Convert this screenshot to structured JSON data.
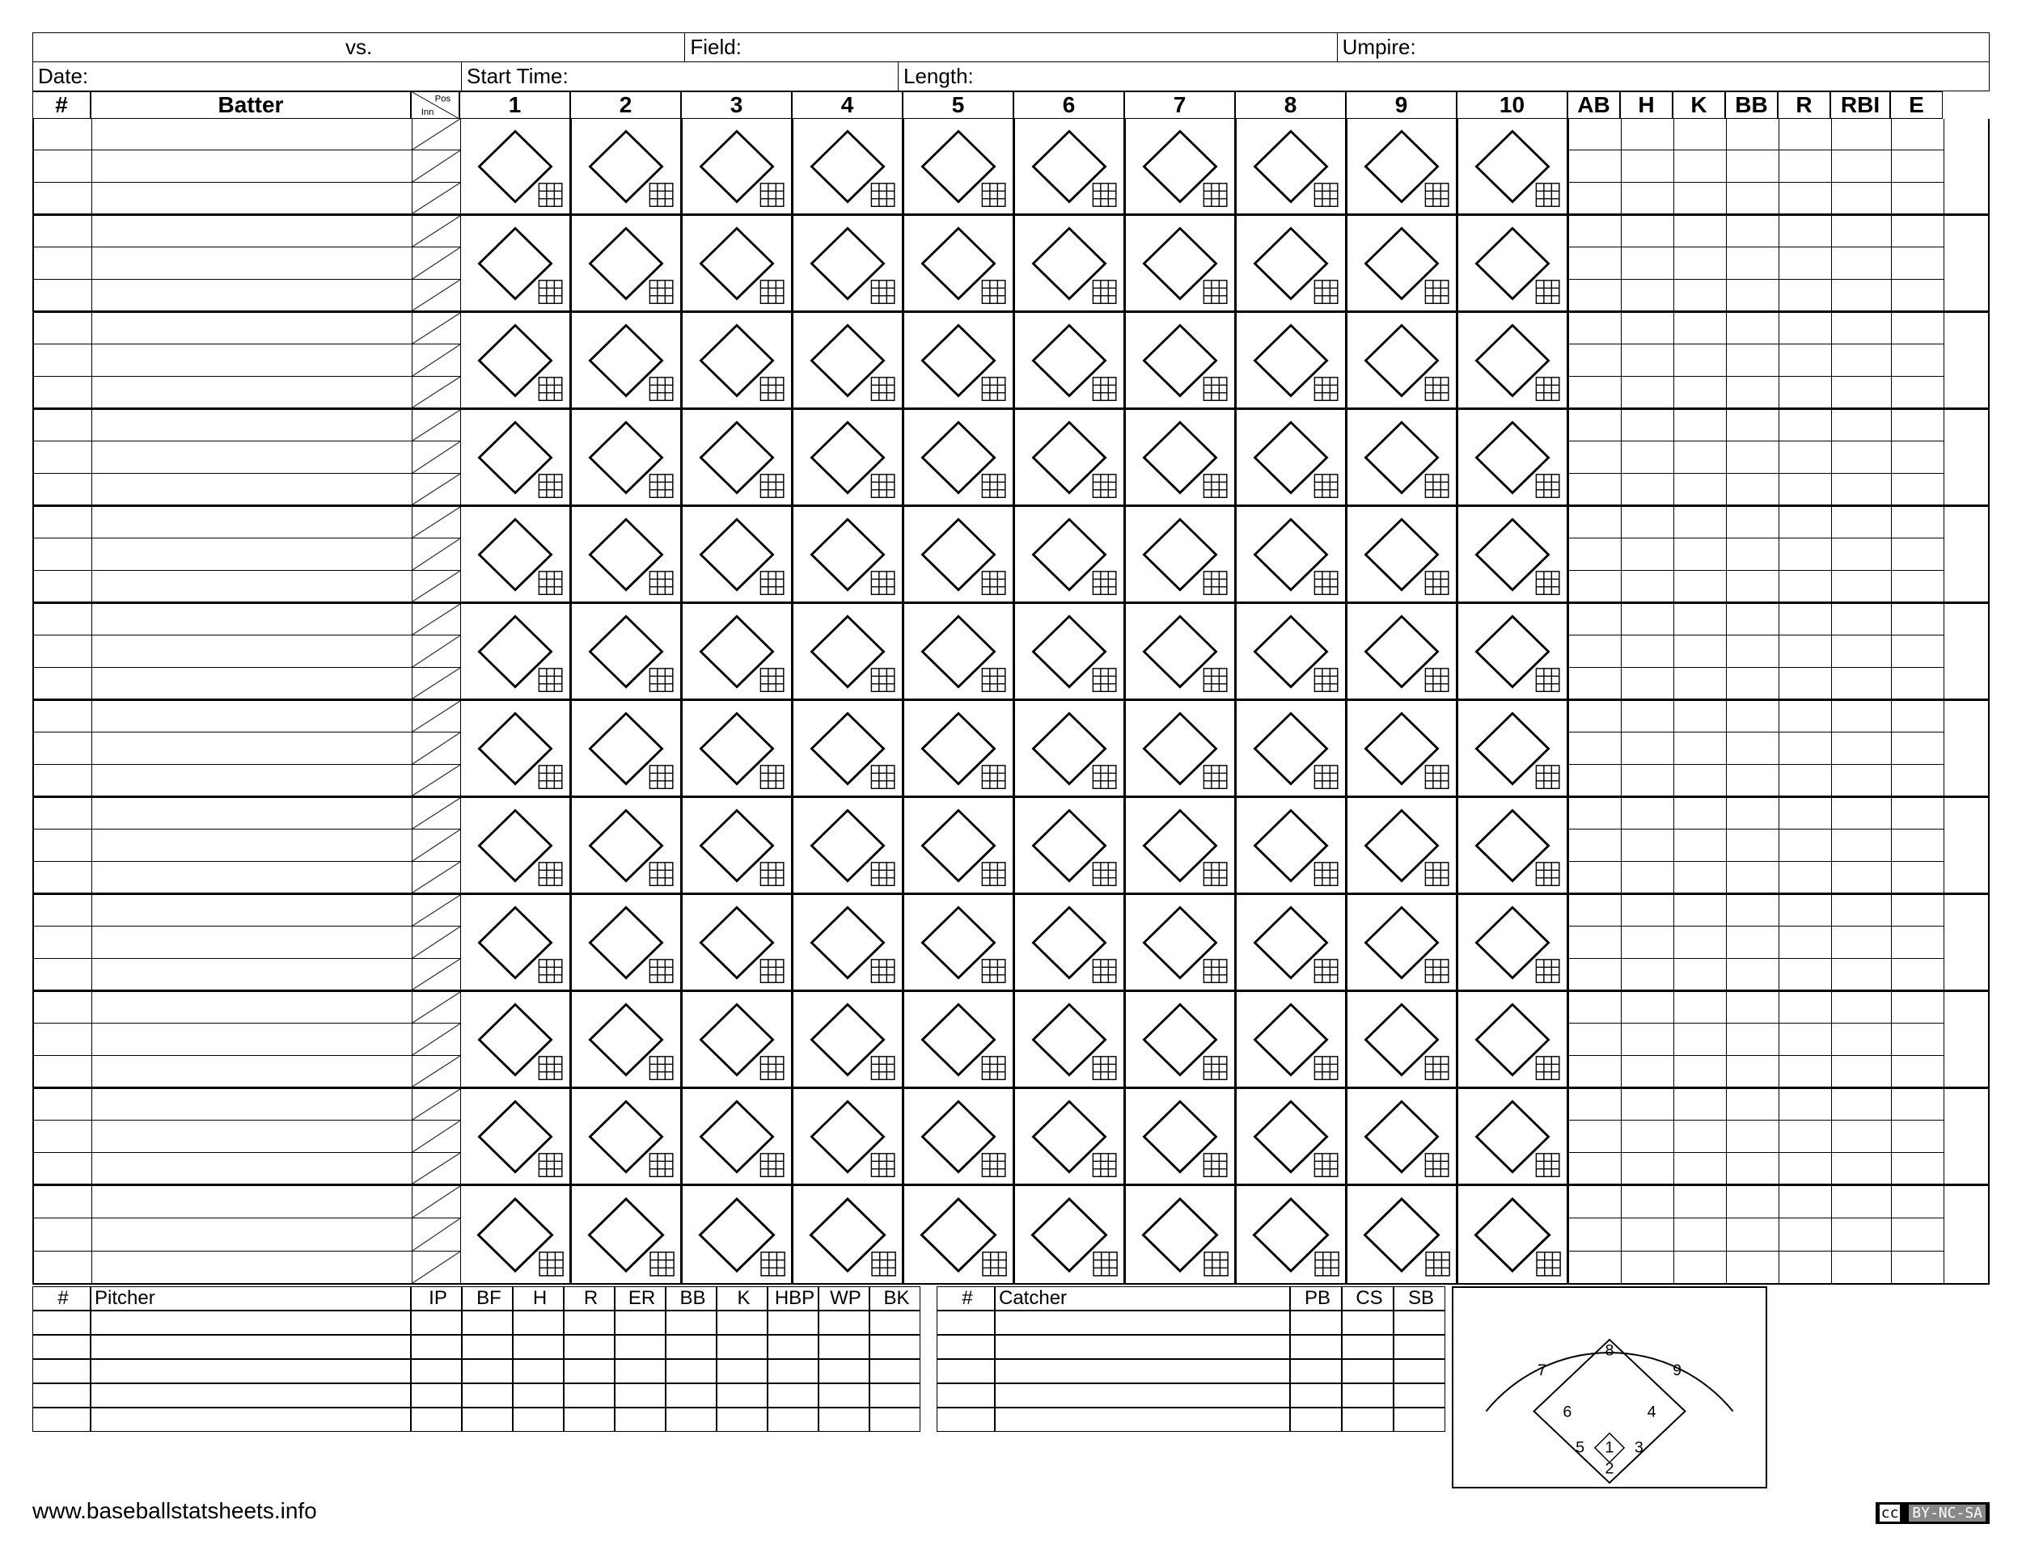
{
  "labels": {
    "vs": "vs.",
    "field": "Field:",
    "umpire": "Umpire:",
    "date": "Date:",
    "start_time": "Start Time:",
    "length": "Length:",
    "num": "#",
    "batter": "Batter",
    "pos": "Pos",
    "inn": "Inn",
    "pitcher": "Pitcher",
    "catcher": "Catcher"
  },
  "innings": [
    "1",
    "2",
    "3",
    "4",
    "5",
    "6",
    "7",
    "8",
    "9",
    "10"
  ],
  "batter_stats": [
    "AB",
    "H",
    "K",
    "BB",
    "R",
    "RBI",
    "E"
  ],
  "pitcher_stats": [
    "IP",
    "BF",
    "H",
    "R",
    "ER",
    "BB",
    "K",
    "HBP",
    "WP",
    "BK"
  ],
  "catcher_stats": [
    "PB",
    "CS",
    "SB"
  ],
  "batter_rows": 12,
  "sub_rows": 3,
  "pitcher_rows": 5,
  "catcher_rows": 5,
  "positions": [
    "1",
    "2",
    "3",
    "4",
    "5",
    "6",
    "7",
    "8",
    "9"
  ],
  "footer_url": "www.baseballstatsheets.info",
  "license": "BY-NC-SA",
  "colors": {
    "line": "#000000",
    "bg": "#ffffff"
  }
}
